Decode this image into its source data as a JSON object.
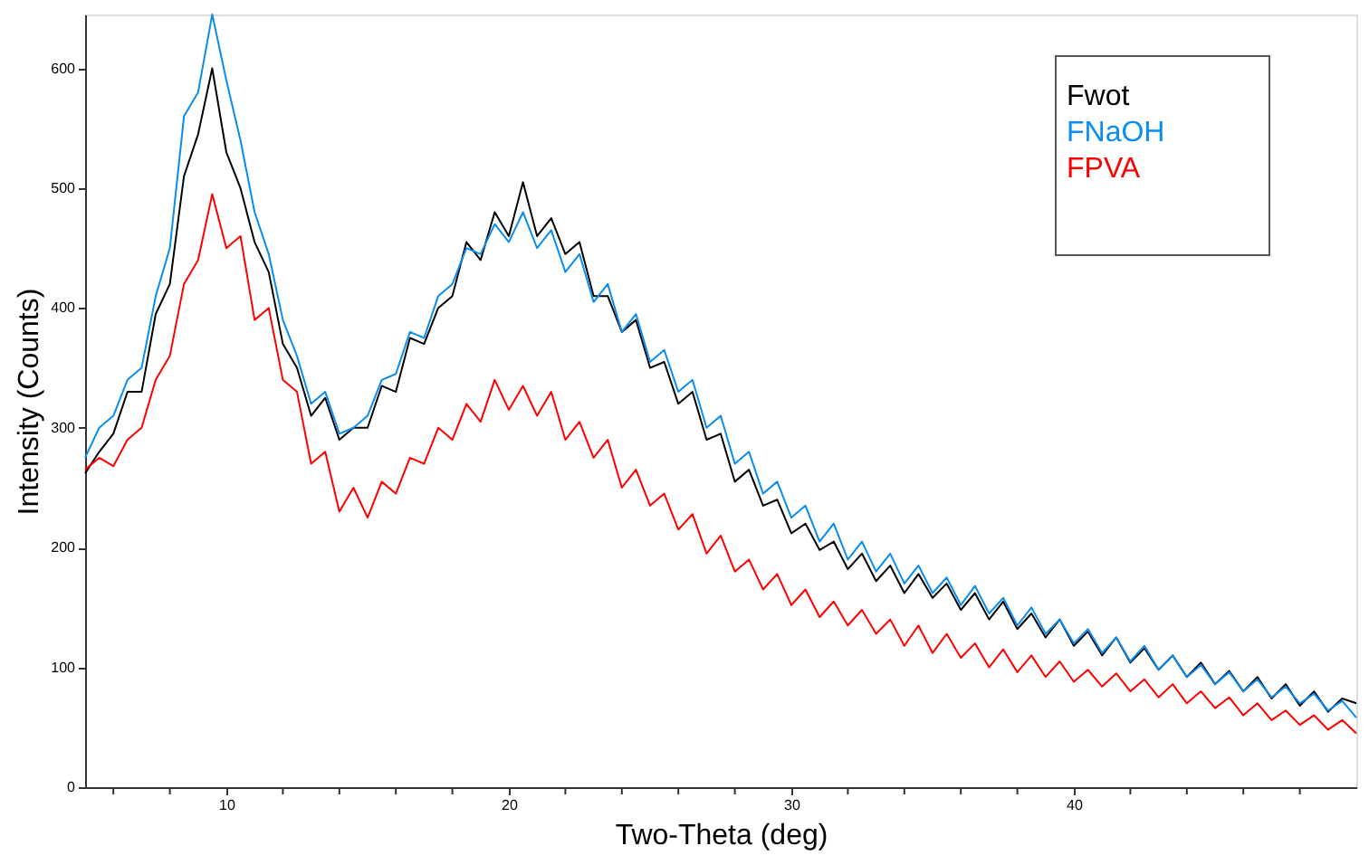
{
  "chart_data": {
    "type": "line",
    "xlabel": "Two-Theta (deg)",
    "ylabel": "Intensity (Counts)",
    "xlim": [
      5,
      50
    ],
    "ylim": [
      0,
      645
    ],
    "xticks": [
      {
        "value": 6,
        "label": null
      },
      {
        "value": 8,
        "label": null
      },
      10,
      {
        "value": 12,
        "label": null
      },
      {
        "value": 14,
        "label": null
      },
      {
        "value": 16,
        "label": null
      },
      {
        "value": 18,
        "label": null
      },
      20,
      {
        "value": 22,
        "label": null
      },
      {
        "value": 24,
        "label": null
      },
      {
        "value": 26,
        "label": null
      },
      {
        "value": 28,
        "label": null
      },
      30,
      {
        "value": 32,
        "label": null
      },
      {
        "value": 34,
        "label": null
      },
      {
        "value": 36,
        "label": null
      },
      {
        "value": 38,
        "label": null
      },
      40,
      {
        "value": 42,
        "label": null
      },
      {
        "value": 44,
        "label": null
      },
      {
        "value": 46,
        "label": null
      },
      {
        "value": 48,
        "label": null
      }
    ],
    "yticks": [
      0,
      100,
      200,
      300,
      400,
      500,
      600
    ],
    "grid": false,
    "legend": "top right",
    "marker": "none",
    "line_style": "solid",
    "x": [
      5,
      5.5,
      6,
      6.5,
      7,
      7.5,
      8,
      8.5,
      9,
      9.5,
      10,
      10.5,
      11,
      11.5,
      12,
      12.5,
      13,
      13.5,
      14,
      14.5,
      15,
      15.5,
      16,
      16.5,
      17,
      17.5,
      18,
      18.5,
      19,
      19.5,
      20,
      20.5,
      21,
      21.5,
      22,
      22.5,
      23,
      23.5,
      24,
      24.5,
      25,
      25.5,
      26,
      26.5,
      27,
      27.5,
      28,
      28.5,
      29,
      29.5,
      30,
      30.5,
      31,
      31.5,
      32,
      32.5,
      33,
      33.5,
      34,
      34.5,
      35,
      35.5,
      36,
      36.5,
      37,
      37.5,
      38,
      38.5,
      39,
      39.5,
      40,
      40.5,
      41,
      41.5,
      42,
      42.5,
      43,
      43.5,
      44,
      44.5,
      45,
      45.5,
      46,
      46.5,
      47,
      47.5,
      48,
      48.5,
      49,
      49.5,
      50
    ],
    "series": [
      {
        "name": "Fwot",
        "color": "#000000",
        "values": [
          262,
          280,
          295,
          330,
          330,
          395,
          420,
          510,
          545,
          600,
          530,
          500,
          455,
          430,
          370,
          350,
          310,
          325,
          290,
          300,
          300,
          335,
          330,
          375,
          370,
          400,
          410,
          455,
          440,
          480,
          460,
          505,
          460,
          475,
          445,
          455,
          410,
          410,
          380,
          390,
          350,
          355,
          320,
          330,
          290,
          295,
          255,
          265,
          235,
          240,
          212,
          220,
          198,
          205,
          182,
          195,
          172,
          185,
          162,
          178,
          158,
          170,
          148,
          162,
          140,
          155,
          132,
          145,
          125,
          140,
          118,
          130,
          110,
          125,
          104,
          116,
          98,
          110,
          92,
          104,
          86,
          97,
          80,
          92,
          74,
          86,
          68,
          80,
          63,
          74,
          70
        ]
      },
      {
        "name": "FNaOH",
        "color": "#0a8cf0",
        "values": [
          275,
          300,
          310,
          340,
          350,
          410,
          450,
          560,
          580,
          645,
          590,
          540,
          480,
          445,
          390,
          360,
          320,
          330,
          295,
          300,
          310,
          340,
          345,
          380,
          375,
          410,
          420,
          450,
          445,
          470,
          455,
          480,
          450,
          465,
          430,
          445,
          405,
          420,
          380,
          395,
          355,
          365,
          330,
          340,
          300,
          310,
          270,
          280,
          245,
          255,
          225,
          235,
          205,
          220,
          190,
          205,
          180,
          195,
          170,
          185,
          162,
          175,
          152,
          168,
          145,
          158,
          135,
          150,
          128,
          140,
          120,
          132,
          112,
          125,
          105,
          118,
          98,
          110,
          92,
          102,
          86,
          96,
          80,
          90,
          75,
          84,
          70,
          78,
          64,
          72,
          58
        ]
      },
      {
        "name": "FPVA",
        "color": "#ff0000",
        "values": [
          265,
          275,
          268,
          290,
          300,
          340,
          360,
          420,
          440,
          495,
          450,
          460,
          390,
          400,
          340,
          330,
          270,
          280,
          230,
          250,
          225,
          255,
          245,
          275,
          270,
          300,
          290,
          320,
          305,
          340,
          315,
          335,
          310,
          330,
          290,
          305,
          275,
          290,
          250,
          265,
          235,
          245,
          215,
          228,
          195,
          210,
          180,
          190,
          165,
          178,
          152,
          165,
          142,
          155,
          135,
          148,
          128,
          140,
          118,
          135,
          112,
          128,
          108,
          120,
          100,
          115,
          96,
          110,
          92,
          105,
          88,
          98,
          84,
          95,
          80,
          90,
          75,
          86,
          70,
          80,
          66,
          75,
          60,
          70,
          56,
          64,
          52,
          60,
          48,
          56,
          45
        ]
      }
    ]
  }
}
